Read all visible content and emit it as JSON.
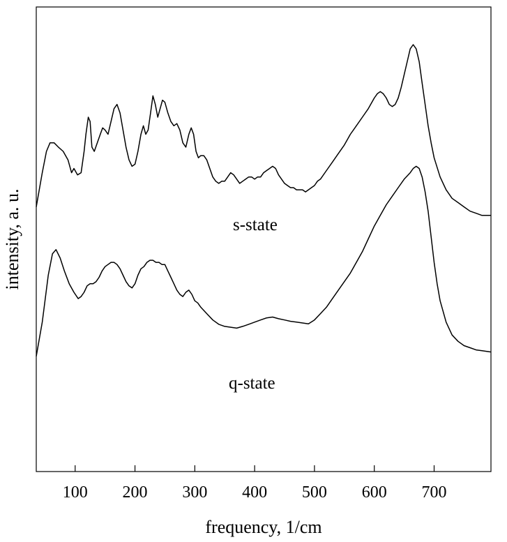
{
  "chart_data": {
    "type": "line",
    "title": "",
    "xlabel": "frequency, 1/cm",
    "ylabel": "intensity, a. u.",
    "xlim": [
      35,
      795
    ],
    "ylim": [
      0,
      1.0
    ],
    "xticks": [
      100,
      200,
      300,
      400,
      500,
      600,
      700
    ],
    "grid": false,
    "legend": "none",
    "series": [
      {
        "annotation": "s-state",
        "color": "#000000",
        "x": [
          35,
          45,
          52,
          58,
          65,
          72,
          80,
          88,
          94,
          98,
          104,
          110,
          115,
          118,
          122,
          125,
          128,
          132,
          137,
          142,
          146,
          150,
          155,
          160,
          165,
          170,
          175,
          180,
          185,
          190,
          195,
          200,
          205,
          210,
          214,
          218,
          222,
          226,
          230,
          234,
          238,
          242,
          246,
          250,
          255,
          260,
          265,
          270,
          275,
          280,
          285,
          290,
          294,
          298,
          302,
          306,
          310,
          315,
          320,
          325,
          330,
          335,
          340,
          345,
          350,
          355,
          360,
          365,
          370,
          375,
          380,
          385,
          390,
          395,
          400,
          405,
          410,
          415,
          420,
          425,
          430,
          435,
          440,
          445,
          450,
          455,
          460,
          465,
          470,
          475,
          480,
          485,
          490,
          495,
          500,
          505,
          510,
          520,
          530,
          540,
          550,
          560,
          570,
          580,
          590,
          600,
          605,
          610,
          615,
          620,
          625,
          630,
          635,
          640,
          645,
          650,
          655,
          660,
          665,
          670,
          675,
          680,
          685,
          690,
          695,
          700,
          710,
          720,
          730,
          740,
          750,
          760,
          770,
          780,
          795
        ],
        "y": [
          0.62,
          0.7,
          0.75,
          0.77,
          0.77,
          0.76,
          0.75,
          0.73,
          0.7,
          0.71,
          0.695,
          0.7,
          0.75,
          0.79,
          0.83,
          0.82,
          0.76,
          0.75,
          0.77,
          0.79,
          0.805,
          0.8,
          0.79,
          0.82,
          0.85,
          0.86,
          0.84,
          0.8,
          0.76,
          0.73,
          0.715,
          0.72,
          0.75,
          0.79,
          0.81,
          0.79,
          0.8,
          0.84,
          0.88,
          0.86,
          0.83,
          0.85,
          0.87,
          0.865,
          0.84,
          0.82,
          0.81,
          0.815,
          0.8,
          0.77,
          0.76,
          0.79,
          0.805,
          0.79,
          0.75,
          0.735,
          0.74,
          0.74,
          0.73,
          0.71,
          0.69,
          0.68,
          0.675,
          0.68,
          0.68,
          0.69,
          0.7,
          0.695,
          0.685,
          0.675,
          0.68,
          0.685,
          0.69,
          0.69,
          0.685,
          0.69,
          0.69,
          0.7,
          0.705,
          0.71,
          0.715,
          0.71,
          0.695,
          0.685,
          0.675,
          0.67,
          0.665,
          0.665,
          0.66,
          0.66,
          0.66,
          0.655,
          0.66,
          0.665,
          0.67,
          0.68,
          0.685,
          0.705,
          0.725,
          0.745,
          0.765,
          0.79,
          0.81,
          0.83,
          0.85,
          0.875,
          0.885,
          0.89,
          0.885,
          0.875,
          0.86,
          0.855,
          0.86,
          0.875,
          0.9,
          0.93,
          0.96,
          0.99,
          1.0,
          0.99,
          0.96,
          0.91,
          0.86,
          0.81,
          0.77,
          0.735,
          0.69,
          0.66,
          0.64,
          0.63,
          0.62,
          0.61,
          0.605,
          0.6,
          0.6
        ]
      },
      {
        "annotation": "q-state",
        "color": "#000000",
        "x": [
          35,
          45,
          55,
          62,
          68,
          75,
          82,
          90,
          98,
          105,
          110,
          115,
          120,
          125,
          130,
          135,
          140,
          145,
          150,
          155,
          160,
          165,
          170,
          175,
          180,
          185,
          190,
          195,
          200,
          205,
          210,
          215,
          220,
          225,
          230,
          235,
          240,
          245,
          250,
          255,
          260,
          265,
          270,
          275,
          280,
          285,
          290,
          295,
          300,
          305,
          310,
          320,
          330,
          340,
          350,
          360,
          370,
          380,
          390,
          400,
          410,
          420,
          430,
          440,
          450,
          460,
          470,
          480,
          490,
          500,
          510,
          520,
          530,
          540,
          550,
          560,
          570,
          580,
          590,
          600,
          610,
          620,
          630,
          640,
          650,
          660,
          665,
          670,
          675,
          680,
          685,
          690,
          695,
          700,
          705,
          710,
          720,
          730,
          740,
          750,
          760,
          770,
          780,
          795
        ],
        "y": [
          0.27,
          0.35,
          0.46,
          0.51,
          0.52,
          0.5,
          0.47,
          0.44,
          0.42,
          0.405,
          0.41,
          0.42,
          0.435,
          0.44,
          0.44,
          0.445,
          0.455,
          0.47,
          0.48,
          0.485,
          0.49,
          0.49,
          0.485,
          0.475,
          0.46,
          0.445,
          0.435,
          0.43,
          0.44,
          0.46,
          0.475,
          0.48,
          0.49,
          0.495,
          0.495,
          0.49,
          0.49,
          0.485,
          0.485,
          0.47,
          0.455,
          0.44,
          0.425,
          0.415,
          0.41,
          0.42,
          0.425,
          0.415,
          0.4,
          0.395,
          0.385,
          0.37,
          0.355,
          0.345,
          0.34,
          0.338,
          0.336,
          0.34,
          0.345,
          0.35,
          0.355,
          0.36,
          0.362,
          0.358,
          0.355,
          0.352,
          0.35,
          0.348,
          0.346,
          0.355,
          0.37,
          0.385,
          0.405,
          0.425,
          0.445,
          0.465,
          0.49,
          0.515,
          0.545,
          0.575,
          0.6,
          0.625,
          0.645,
          0.665,
          0.685,
          0.7,
          0.71,
          0.715,
          0.71,
          0.69,
          0.655,
          0.61,
          0.55,
          0.49,
          0.44,
          0.4,
          0.35,
          0.32,
          0.305,
          0.295,
          0.29,
          0.285,
          0.283,
          0.28
        ]
      }
    ]
  }
}
